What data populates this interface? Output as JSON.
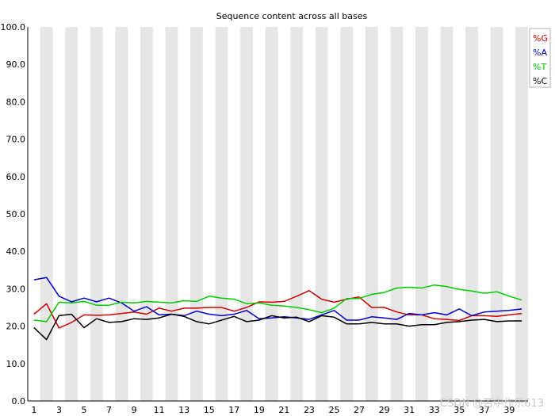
{
  "chart_data": {
    "type": "line",
    "title": "Sequence content across all bases",
    "xlabel": "",
    "ylabel": "",
    "ylim": [
      0,
      100
    ],
    "y_ticks": [
      "0.0",
      "10.0",
      "20.0",
      "30.0",
      "40.0",
      "50.0",
      "60.0",
      "70.0",
      "80.0",
      "90.0",
      "100.0"
    ],
    "x": [
      1,
      2,
      3,
      4,
      5,
      6,
      7,
      8,
      9,
      10,
      11,
      12,
      13,
      14,
      15,
      16,
      17,
      18,
      19,
      20,
      21,
      22,
      23,
      24,
      25,
      26,
      27,
      28,
      29,
      30,
      31,
      32,
      33,
      34,
      35,
      36,
      37,
      38,
      39,
      40
    ],
    "x_ticks": [
      "1",
      "3",
      "5",
      "7",
      "9",
      "11",
      "13",
      "15",
      "17",
      "19",
      "21",
      "23",
      "25",
      "27",
      "29",
      "31",
      "33",
      "35",
      "37",
      "39"
    ],
    "grid": "alternating-column-bands",
    "legend_position": "top-right",
    "series": [
      {
        "name": "%G",
        "color": "#cc0000",
        "values": [
          23.2,
          26.0,
          19.5,
          21.0,
          23.0,
          22.9,
          23.0,
          23.4,
          23.8,
          23.2,
          24.8,
          24.0,
          24.8,
          24.8,
          25.0,
          25.0,
          24.0,
          25.0,
          26.5,
          26.4,
          26.6,
          28.0,
          29.5,
          27.2,
          26.4,
          27.2,
          27.8,
          25.0,
          25.0,
          23.8,
          23.0,
          23.0,
          22.0,
          21.8,
          21.5,
          22.8,
          22.8,
          22.6,
          23.0,
          23.4
        ]
      },
      {
        "name": "%A",
        "color": "#0000cc",
        "values": [
          32.4,
          33.0,
          28.0,
          26.5,
          27.5,
          26.5,
          27.5,
          26.2,
          24.0,
          25.2,
          23.0,
          23.2,
          22.8,
          24.0,
          23.2,
          22.8,
          23.2,
          24.2,
          22.0,
          22.2,
          22.5,
          22.2,
          21.8,
          23.0,
          24.2,
          21.6,
          21.6,
          22.5,
          22.2,
          21.8,
          23.4,
          23.0,
          23.6,
          23.0,
          24.6,
          22.8,
          23.8,
          24.0,
          24.2,
          24.6
        ]
      },
      {
        "name": "%T",
        "color": "#00cc00",
        "values": [
          21.6,
          21.2,
          26.4,
          26.2,
          26.6,
          25.6,
          25.6,
          26.4,
          26.2,
          26.6,
          26.4,
          26.2,
          26.8,
          26.6,
          28.0,
          27.5,
          27.2,
          26.0,
          26.2,
          25.6,
          25.4,
          25.0,
          24.4,
          23.6,
          24.8,
          27.4,
          27.4,
          28.5,
          29.0,
          30.2,
          30.4,
          30.2,
          31.0,
          30.6,
          29.8,
          29.4,
          28.8,
          29.2,
          28.0,
          27.0
        ]
      },
      {
        "name": "%C",
        "color": "#000000",
        "values": [
          19.6,
          16.4,
          22.8,
          23.2,
          19.6,
          22.0,
          21.0,
          21.2,
          22.0,
          21.8,
          22.2,
          23.2,
          22.6,
          21.2,
          20.6,
          21.6,
          22.6,
          21.2,
          21.6,
          22.8,
          22.2,
          22.4,
          21.2,
          22.8,
          22.4,
          20.6,
          20.6,
          21.0,
          20.6,
          20.6,
          20.0,
          20.4,
          20.4,
          21.0,
          21.2,
          21.6,
          21.8,
          21.2,
          21.4,
          21.4
        ]
      }
    ]
  },
  "watermark": "CSDN @苦中作乐613"
}
